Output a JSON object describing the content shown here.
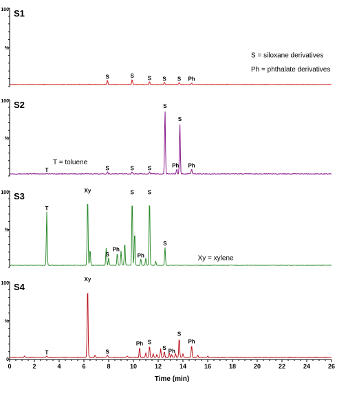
{
  "chart_data": {
    "type": "line",
    "xlabel": "Time (min)",
    "xlim": [
      0,
      26
    ],
    "x_ticks": [
      "0",
      "2",
      "4",
      "6",
      "8",
      "10",
      "12",
      "14",
      "16",
      "18",
      "20",
      "22",
      "24",
      "26"
    ],
    "y_tick_top": "100",
    "y_tick_mid": "%",
    "y_tick_bottom": "0",
    "panels": [
      {
        "label": "S1",
        "color": "#d11a1a",
        "peaks": [
          [
            7.9,
            6
          ],
          [
            9.9,
            7
          ],
          [
            11.3,
            4
          ],
          [
            12.5,
            3
          ],
          [
            13.7,
            3
          ],
          [
            14.7,
            2
          ]
        ],
        "peak_labels": [
          {
            "text": "S",
            "x": 7.9,
            "y": 7
          },
          {
            "text": "S",
            "x": 9.9,
            "y": 8
          },
          {
            "text": "S",
            "x": 11.3,
            "y": 5
          },
          {
            "text": "S",
            "x": 12.5,
            "y": 4
          },
          {
            "text": "S",
            "x": 13.7,
            "y": 4
          },
          {
            "text": "Ph",
            "x": 14.7,
            "y": 4
          }
        ],
        "annotations": [
          {
            "text": "S  =  siloxane derivatives",
            "x": 19.5,
            "y": 37
          },
          {
            "text": "Ph  =  phthalate derivatives",
            "x": 19.5,
            "y": 18
          }
        ]
      },
      {
        "label": "S2",
        "color": "#8a1a8a",
        "peaks": [
          [
            3.0,
            1
          ],
          [
            7.9,
            3
          ],
          [
            9.9,
            3
          ],
          [
            11.3,
            3
          ],
          [
            12.55,
            88
          ],
          [
            13.75,
            70
          ],
          [
            13.5,
            7
          ],
          [
            14.7,
            7
          ]
        ],
        "peak_labels": [
          {
            "text": "T",
            "x": 3.0,
            "y": 2
          },
          {
            "text": "S",
            "x": 7.9,
            "y": 4
          },
          {
            "text": "S",
            "x": 9.9,
            "y": 4
          },
          {
            "text": "S",
            "x": 11.3,
            "y": 4
          },
          {
            "text": "S",
            "x": 12.55,
            "y": 89
          },
          {
            "text": "S",
            "x": 13.75,
            "y": 71
          },
          {
            "text": "Ph",
            "x": 13.4,
            "y": 8
          },
          {
            "text": "Ph",
            "x": 14.7,
            "y": 8
          }
        ],
        "annotations": [
          {
            "text": "T  =  toluene",
            "x": 3.5,
            "y": 14
          }
        ]
      },
      {
        "label": "S3",
        "color": "#2e8b2e",
        "peaks": [
          [
            3.0,
            73
          ],
          [
            6.3,
            97
          ],
          [
            6.5,
            22
          ],
          [
            7.8,
            24
          ],
          [
            8.0,
            10
          ],
          [
            8.7,
            17
          ],
          [
            9.0,
            20
          ],
          [
            9.3,
            32
          ],
          [
            9.9,
            95
          ],
          [
            10.1,
            47
          ],
          [
            10.6,
            9
          ],
          [
            11.0,
            10
          ],
          [
            11.3,
            95
          ],
          [
            11.8,
            6
          ],
          [
            12.55,
            25
          ]
        ],
        "peak_labels": [
          {
            "text": "T",
            "x": 3.0,
            "y": 74
          },
          {
            "text": "Xy",
            "x": 6.3,
            "y": 98
          },
          {
            "text": "S",
            "x": 7.9,
            "y": 11
          },
          {
            "text": "Ph",
            "x": 8.6,
            "y": 18
          },
          {
            "text": "S",
            "x": 9.9,
            "y": 96
          },
          {
            "text": "Ph",
            "x": 10.6,
            "y": 10
          },
          {
            "text": "S",
            "x": 11.3,
            "y": 96
          },
          {
            "text": "S",
            "x": 12.55,
            "y": 26
          }
        ],
        "annotations": [
          {
            "text": "Xy  =  xylene",
            "x": 15.2,
            "y": 8
          }
        ]
      },
      {
        "label": "S4",
        "color": "#b8141e",
        "peaks": [
          [
            1.2,
            2
          ],
          [
            3.0,
            2
          ],
          [
            6.3,
            100
          ],
          [
            6.9,
            3
          ],
          [
            7.9,
            3
          ],
          [
            9.5,
            2
          ],
          [
            10.5,
            14
          ],
          [
            11.0,
            6
          ],
          [
            11.3,
            16
          ],
          [
            11.6,
            5
          ],
          [
            11.9,
            4
          ],
          [
            12.2,
            12
          ],
          [
            12.5,
            8
          ],
          [
            12.9,
            6
          ],
          [
            13.1,
            4
          ],
          [
            13.4,
            5
          ],
          [
            13.7,
            27
          ],
          [
            14.0,
            5
          ],
          [
            14.7,
            17
          ],
          [
            15.2,
            3
          ],
          [
            16.0,
            2
          ]
        ],
        "peak_labels": [
          {
            "text": "T",
            "x": 3.0,
            "y": 3
          },
          {
            "text": "Xy",
            "x": 6.3,
            "y": 101
          },
          {
            "text": "S",
            "x": 7.9,
            "y": 4
          },
          {
            "text": "Ph",
            "x": 10.5,
            "y": 15
          },
          {
            "text": "S",
            "x": 11.3,
            "y": 17
          },
          {
            "text": "S",
            "x": 12.5,
            "y": 9
          },
          {
            "text": "Ph",
            "x": 13.1,
            "y": 5
          },
          {
            "text": "S",
            "x": 13.7,
            "y": 28
          },
          {
            "text": "Ph",
            "x": 14.7,
            "y": 18
          }
        ],
        "annotations": []
      }
    ]
  }
}
